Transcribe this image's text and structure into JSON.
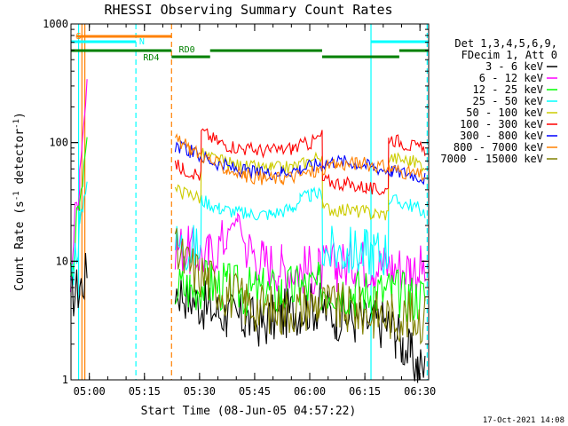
{
  "chart_data": {
    "type": "line",
    "title": "RHESSI Observing Summary Count Rates",
    "xlabel": "Start Time (08-Jun-05 04:57:22)",
    "ylabel_prefix": "Count Rate (s",
    "ylabel_sup1": "-1",
    "ylabel_mid": " detector",
    "ylabel_sup2": "-1",
    "ylabel_suffix": ")",
    "yscale": "log",
    "ylim": [
      1,
      1000
    ],
    "xlim_min": [
      -2.37,
      95.0
    ],
    "x_ticks": [
      {
        "min": 2.63,
        "label": "05:00"
      },
      {
        "min": 17.63,
        "label": "05:15"
      },
      {
        "min": 32.63,
        "label": "05:30"
      },
      {
        "min": 47.63,
        "label": "05:45"
      },
      {
        "min": 62.63,
        "label": "06:00"
      },
      {
        "min": 77.63,
        "label": "06:15"
      },
      {
        "min": 92.63,
        "label": "06:30"
      }
    ],
    "y_ticks": [
      {
        "value": 1,
        "label": "1"
      },
      {
        "value": 10,
        "label": "10"
      },
      {
        "value": 100,
        "label": "100"
      },
      {
        "value": 1000,
        "label": "1000"
      }
    ],
    "legend": {
      "header1": "Det 1,3,4,5,6,9,",
      "header2": "FDecim 1, Att 0",
      "position": "right"
    },
    "series": [
      {
        "name": "3 - 6 keV",
        "color": "#000000",
        "x": [
          -2.5,
          0,
          2,
          5,
          26,
          30,
          35,
          40,
          45,
          50,
          55,
          60,
          65,
          70,
          75,
          80,
          84,
          86,
          88,
          90,
          92,
          94
        ],
        "y": [
          5,
          6,
          8,
          null,
          6,
          5,
          4,
          3.5,
          3.2,
          3,
          3.5,
          4,
          4.2,
          3.5,
          3.2,
          3,
          3,
          2.5,
          2,
          1.6,
          1.3,
          1.2
        ]
      },
      {
        "name": "6 - 12 keV",
        "color": "#ff00ff",
        "x": [
          -2.5,
          0,
          2,
          5,
          26,
          30,
          35,
          40,
          43,
          45,
          47,
          50,
          55,
          60,
          65,
          70,
          75,
          80,
          85,
          90,
          94
        ],
        "y": [
          8,
          60,
          300,
          null,
          14,
          12,
          11,
          16,
          24,
          14,
          12,
          10,
          9,
          8.5,
          8.5,
          9,
          10,
          9.5,
          9,
          8.8,
          8.5
        ]
      },
      {
        "name": "12 - 25 keV",
        "color": "#00ff00",
        "x": [
          -2.5,
          0,
          2,
          5,
          26,
          30,
          35,
          40,
          45,
          50,
          55,
          60,
          65,
          70,
          75,
          80,
          85,
          90,
          94
        ],
        "y": [
          6,
          30,
          100,
          null,
          6,
          6,
          6.5,
          6,
          5.5,
          5.5,
          5.5,
          6,
          6,
          6,
          5.5,
          5.5,
          5.5,
          5,
          5
        ]
      },
      {
        "name": "25 - 50 keV",
        "color": "#00ffff",
        "x": [
          -2.5,
          0,
          2,
          5,
          26,
          29,
          33,
          33.1,
          38,
          45,
          52,
          58,
          60,
          63,
          66,
          66.1,
          72,
          78,
          80,
          84,
          84.1,
          90,
          94
        ],
        "y": [
          7,
          20,
          50,
          null,
          14,
          13,
          12.5,
          33,
          28,
          25,
          25,
          28,
          33,
          36,
          37,
          12,
          12,
          12,
          12,
          12,
          33,
          30,
          26
        ]
      },
      {
        "name": "50 - 100 keV",
        "color": "#cccc00",
        "x": [
          -2.5,
          2,
          5,
          26,
          28,
          31,
          33,
          33.1,
          38,
          45,
          52,
          58,
          63,
          66,
          66.1,
          72,
          78,
          80,
          84,
          84.1,
          90,
          94
        ],
        "y": [
          null,
          null,
          null,
          40,
          38,
          36,
          34,
          80,
          70,
          62,
          60,
          62,
          70,
          80,
          28,
          27,
          26,
          25,
          25,
          75,
          70,
          65
        ]
      },
      {
        "name": "100 - 300 keV",
        "color": "#ff0000",
        "x": [
          -2.5,
          2,
          5,
          26,
          28,
          31,
          33,
          33.1,
          38,
          45,
          52,
          58,
          63,
          66,
          66.1,
          72,
          78,
          80,
          84,
          84.1,
          90,
          94
        ],
        "y": [
          null,
          null,
          null,
          65,
          60,
          56,
          52,
          125,
          100,
          88,
          85,
          90,
          100,
          115,
          48,
          45,
          42,
          40,
          40,
          110,
          95,
          85
        ]
      },
      {
        "name": "300 - 800 keV",
        "color": "#0000ff",
        "x": [
          -2.5,
          2,
          5,
          26,
          30,
          35,
          40,
          45,
          50,
          55,
          60,
          65,
          70,
          75,
          80,
          85,
          90,
          94
        ],
        "y": [
          null,
          null,
          null,
          95,
          85,
          72,
          63,
          57,
          55,
          57,
          60,
          66,
          70,
          68,
          62,
          58,
          55,
          50
        ]
      },
      {
        "name": "800 - 7000 keV",
        "color": "#ff8000",
        "x": [
          -2.5,
          2,
          5,
          26,
          30,
          35,
          40,
          45,
          50,
          55,
          60,
          65,
          70,
          75,
          80,
          85,
          90,
          94
        ],
        "y": [
          null,
          null,
          null,
          105,
          90,
          72,
          60,
          53,
          50,
          50,
          53,
          58,
          65,
          67,
          65,
          60,
          55,
          52
        ]
      },
      {
        "name": "7000 - 15000 keV",
        "color": "#808000",
        "x": [
          -2.5,
          2,
          5,
          26,
          30,
          35,
          40,
          45,
          50,
          55,
          60,
          65,
          70,
          75,
          80,
          85,
          90,
          94
        ],
        "y": [
          null,
          null,
          null,
          12,
          9,
          7,
          5.5,
          4.5,
          4,
          3.8,
          4.2,
          4.5,
          4,
          3.8,
          3.6,
          3.5,
          3.4,
          3.3
        ]
      }
    ],
    "state_bars": [
      {
        "label": "S",
        "color": "#ff8000",
        "x_start": -1.0,
        "x_end": 25.0,
        "level": "top",
        "label_x": -1.0
      },
      {
        "label": "N",
        "color": "#00ffff",
        "x_start": -2.37,
        "x_end": 15.3,
        "level": "mid",
        "label_x": 16.2
      },
      {
        "label": "",
        "color": "#00ffff",
        "x_start": 79.3,
        "x_end": 95.0,
        "level": "mid",
        "label_x": null
      },
      {
        "label": "RD4",
        "color": "#008000",
        "x_start": -2.37,
        "x_end": 25.0,
        "level": "low",
        "label_x": 17.3
      },
      {
        "label": "RD0",
        "color": "#008000",
        "x_start": 25.0,
        "x_end": 35.5,
        "level": "lower",
        "label_x": 27.0
      },
      {
        "label": "",
        "color": "#008000",
        "x_start": 35.5,
        "x_end": 66.0,
        "level": "low",
        "label_x": null
      },
      {
        "label": "",
        "color": "#008000",
        "x_start": 66.0,
        "x_end": 87.0,
        "level": "lower",
        "label_x": null
      },
      {
        "label": "",
        "color": "#008000",
        "x_start": 87.0,
        "x_end": 95.0,
        "level": "low",
        "label_x": null
      }
    ],
    "vertical_markers": [
      {
        "x": -0.3,
        "color": "#00ffff",
        "style": "solid"
      },
      {
        "x": 0.6,
        "color": "#ff8000",
        "style": "solid"
      },
      {
        "x": 1.4,
        "color": "#ff8000",
        "style": "solid"
      },
      {
        "x": 15.3,
        "color": "#00ffff",
        "style": "dashed"
      },
      {
        "x": 25.0,
        "color": "#ff8000",
        "style": "dashed"
      },
      {
        "x": 79.3,
        "color": "#00ffff",
        "style": "solid"
      },
      {
        "x": 94.6,
        "color": "#00ffff",
        "style": "dashed"
      }
    ],
    "footer_date": "17-Oct-2021 14:08"
  }
}
